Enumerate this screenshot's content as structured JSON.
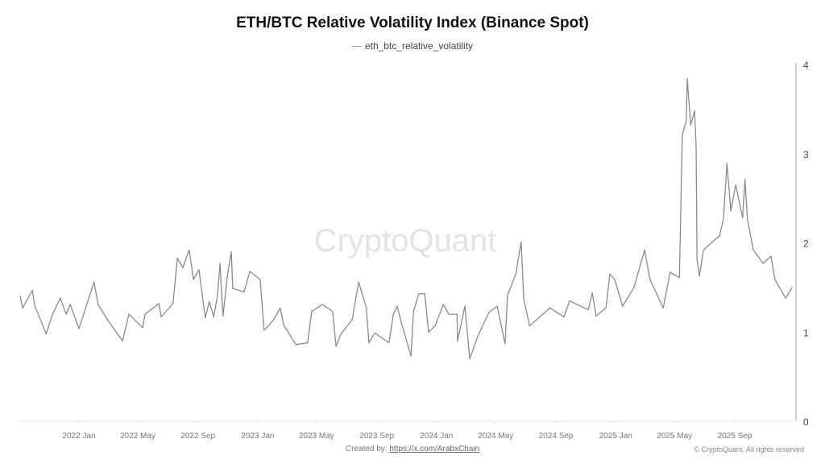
{
  "chart_data": {
    "type": "line",
    "title": "ETH/BTC Relative Volatility Index (Binance Spot)",
    "xlabel": "",
    "ylabel": "",
    "ylim": [
      0,
      4
    ],
    "y_axis_position": "right",
    "y_ticks": [
      "0",
      "1",
      "2",
      "3",
      "4"
    ],
    "x_ticks": [
      {
        "label": "2022 Jan",
        "date": "2022-01-01"
      },
      {
        "label": "2022 May",
        "date": "2022-05-01"
      },
      {
        "label": "2022 Sep",
        "date": "2022-09-01"
      },
      {
        "label": "2023 Jan",
        "date": "2023-01-01"
      },
      {
        "label": "2023 May",
        "date": "2023-05-01"
      },
      {
        "label": "2023 Sep",
        "date": "2023-09-01"
      },
      {
        "label": "2024 Jan",
        "date": "2024-01-01"
      },
      {
        "label": "2024 May",
        "date": "2024-05-01"
      },
      {
        "label": "2024 Sep",
        "date": "2024-09-01"
      },
      {
        "label": "2025 Jan",
        "date": "2025-01-01"
      },
      {
        "label": "2025 May",
        "date": "2025-05-01"
      },
      {
        "label": "2025 Sep",
        "date": "2025-09-01"
      }
    ],
    "legend_position": "top-center",
    "grid": false,
    "series": [
      {
        "name": "eth_btc_relative_volatility",
        "color": "#8a8a8a",
        "x": [
          "2021-09-03",
          "2021-09-08",
          "2021-09-28",
          "2021-10-03",
          "2021-10-26",
          "2021-11-08",
          "2021-11-24",
          "2021-12-06",
          "2021-12-14",
          "2022-01-01",
          "2022-01-21",
          "2022-02-01",
          "2022-02-09",
          "2022-02-28",
          "2022-03-31",
          "2022-04-13",
          "2022-05-11",
          "2022-05-16",
          "2022-06-13",
          "2022-06-18",
          "2022-07-12",
          "2022-07-21",
          "2022-08-01",
          "2022-08-14",
          "2022-08-23",
          "2022-09-03",
          "2022-09-16",
          "2022-09-24",
          "2022-10-03",
          "2022-10-11",
          "2022-10-16",
          "2022-10-22",
          "2022-10-31",
          "2022-11-08",
          "2022-11-11",
          "2022-12-04",
          "2022-12-16",
          "2023-01-06",
          "2023-01-14",
          "2023-02-03",
          "2023-02-16",
          "2023-02-23",
          "2023-03-20",
          "2023-04-13",
          "2023-04-21",
          "2023-05-13",
          "2023-06-03",
          "2023-06-10",
          "2023-06-20",
          "2023-07-13",
          "2023-07-26",
          "2023-08-11",
          "2023-08-16",
          "2023-08-28",
          "2023-09-26",
          "2023-10-05",
          "2023-10-13",
          "2023-10-21",
          "2023-11-10",
          "2023-11-15",
          "2023-11-26",
          "2023-12-08",
          "2023-12-16",
          "2023-12-29",
          "2024-01-15",
          "2024-01-26",
          "2024-02-12",
          "2024-02-13",
          "2024-02-28",
          "2024-03-09",
          "2024-03-25",
          "2024-04-17",
          "2024-05-04",
          "2024-05-20",
          "2024-05-25",
          "2024-06-11",
          "2024-06-22",
          "2024-06-27",
          "2024-07-09",
          "2024-07-30",
          "2024-08-20",
          "2024-09-17",
          "2024-09-29",
          "2024-11-06",
          "2024-11-14",
          "2024-11-22",
          "2024-12-12",
          "2024-12-20",
          "2024-12-30",
          "2025-01-15",
          "2025-02-07",
          "2025-03-01",
          "2025-03-12",
          "2025-04-08",
          "2025-04-22",
          "2025-05-11",
          "2025-05-17",
          "2025-05-25",
          "2025-05-27",
          "2025-06-03",
          "2025-06-11",
          "2025-06-14",
          "2025-06-16",
          "2025-06-21",
          "2025-06-29",
          "2025-07-15",
          "2025-08-01",
          "2025-08-09",
          "2025-08-16",
          "2025-08-24",
          "2025-09-03",
          "2025-09-17",
          "2025-09-22",
          "2025-09-27",
          "2025-10-09",
          "2025-10-29",
          "2025-11-14",
          "2025-11-22",
          "2025-12-14",
          "2025-12-27"
        ],
        "values": [
          1.4,
          1.27,
          1.47,
          1.29,
          0.98,
          1.2,
          1.38,
          1.2,
          1.31,
          1.04,
          1.38,
          1.56,
          1.31,
          1.14,
          0.9,
          1.2,
          1.05,
          1.2,
          1.32,
          1.17,
          1.32,
          1.83,
          1.72,
          1.92,
          1.59,
          1.7,
          1.16,
          1.34,
          1.17,
          1.41,
          1.77,
          1.18,
          1.63,
          1.9,
          1.49,
          1.45,
          1.68,
          1.59,
          1.02,
          1.14,
          1.27,
          1.08,
          0.86,
          0.88,
          1.23,
          1.31,
          1.23,
          0.84,
          0.98,
          1.14,
          1.56,
          1.27,
          0.88,
          0.99,
          0.88,
          1.2,
          1.29,
          1.11,
          0.73,
          1.23,
          1.43,
          1.43,
          1.0,
          1.07,
          1.31,
          1.2,
          1.2,
          0.9,
          1.29,
          0.7,
          0.95,
          1.22,
          1.29,
          0.87,
          1.41,
          1.65,
          2.01,
          1.38,
          1.07,
          1.17,
          1.27,
          1.17,
          1.35,
          1.25,
          1.44,
          1.18,
          1.27,
          1.65,
          1.59,
          1.29,
          1.5,
          1.92,
          1.59,
          1.27,
          1.67,
          1.61,
          3.21,
          3.37,
          3.84,
          3.32,
          3.48,
          3.1,
          1.81,
          1.63,
          1.92,
          2.0,
          2.08,
          2.27,
          2.89,
          2.36,
          2.65,
          2.28,
          2.71,
          2.26,
          1.92,
          1.77,
          1.85,
          1.59,
          1.38,
          1.5
        ]
      }
    ]
  },
  "watermark": "CryptoQuant",
  "footer": {
    "created_by_label": "Created by:",
    "created_by_link": "https://x.com/ArabxChain",
    "copyright": "© CryptoQuant. All rights reserved"
  }
}
